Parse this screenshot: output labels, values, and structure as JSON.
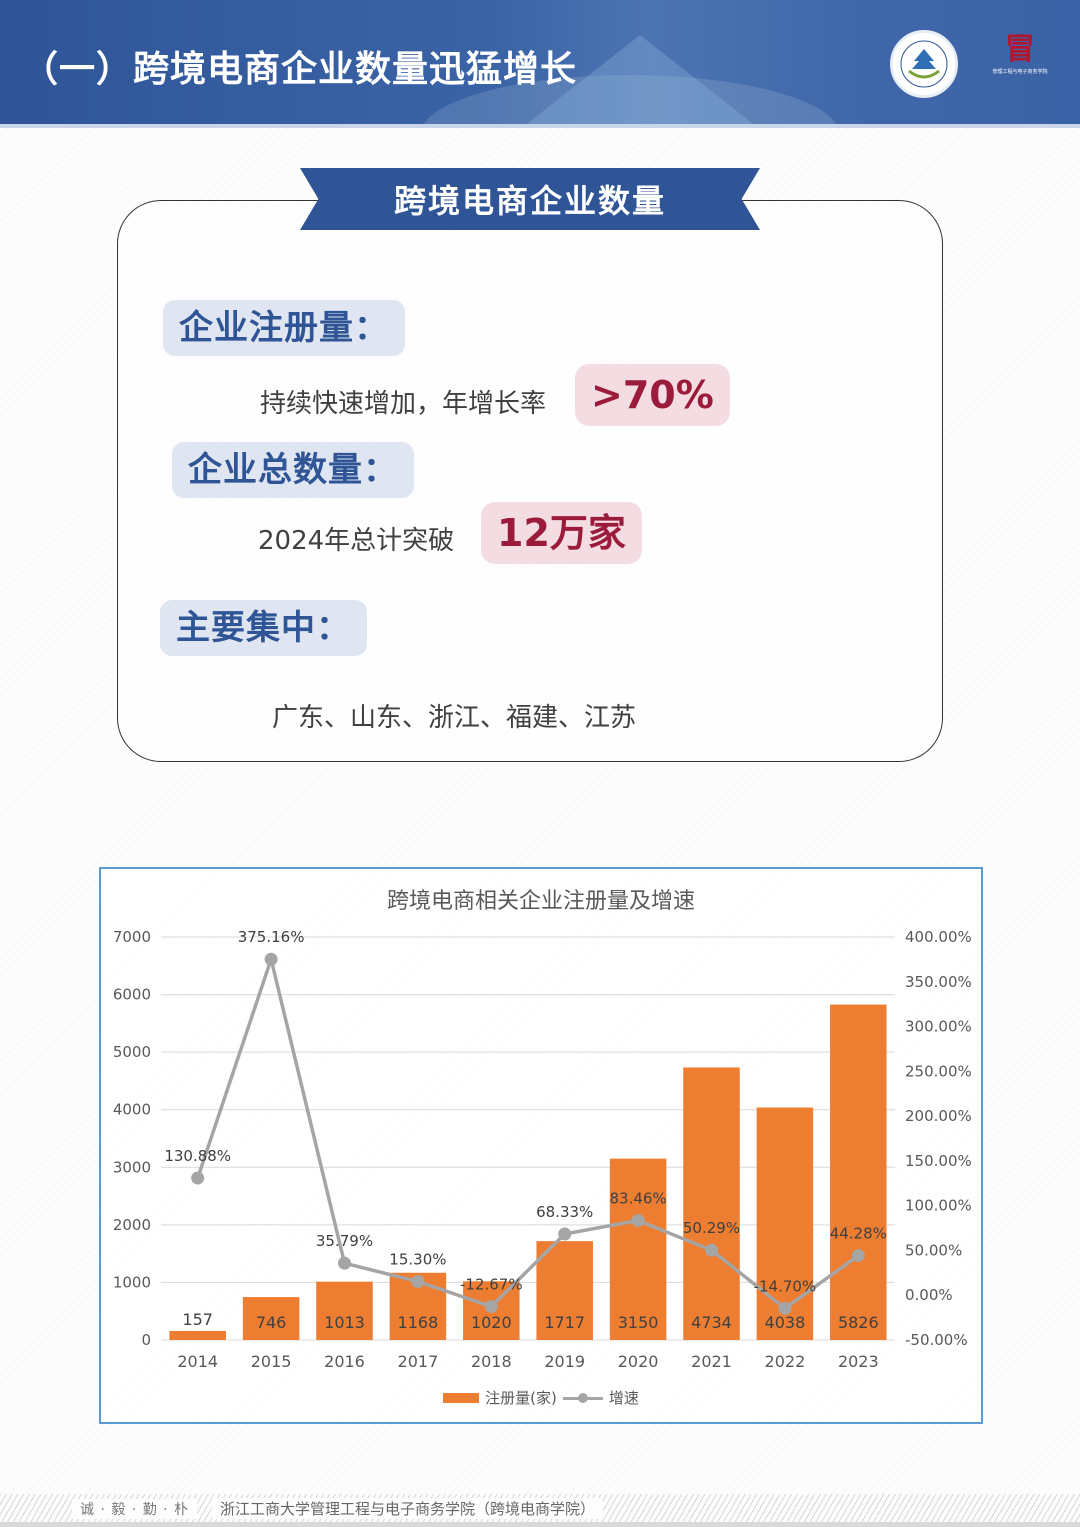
{
  "header": {
    "title": "（一）跨境电商企业数量迅猛增长",
    "university_logo": "zhejiang-gongshang-university-emblem",
    "school_logo_caption": "管理工程与电子商务学院"
  },
  "card": {
    "ribbon_title": "跨境电商企业数量",
    "sections": [
      {
        "label": "企业注册量：",
        "text": "持续快速增加，年增长率",
        "highlight": ">70%"
      },
      {
        "label": "企业总数量：",
        "text": "2024年总计突破",
        "highlight": "12万家"
      },
      {
        "label": "主要集中：",
        "text": "广东、山东、浙江、福建、江苏"
      }
    ]
  },
  "chart": {
    "title": "跨境电商相关企业注册量及增速",
    "legend": {
      "bar": "注册量(家)",
      "line": "增速"
    }
  },
  "chart_data": {
    "type": "bar+line",
    "title": "跨境电商相关企业注册量及增速",
    "categories": [
      "2014",
      "2015",
      "2016",
      "2017",
      "2018",
      "2019",
      "2020",
      "2021",
      "2022",
      "2023"
    ],
    "series": [
      {
        "name": "注册量(家)",
        "type": "bar",
        "axis": "left",
        "color": "#ed7d31",
        "values": [
          157,
          746,
          1013,
          1168,
          1020,
          1717,
          3150,
          4734,
          4038,
          5826
        ]
      },
      {
        "name": "增速",
        "type": "line",
        "axis": "right",
        "color": "#a5a5a5",
        "values": [
          130.88,
          375.16,
          35.79,
          15.3,
          -12.67,
          68.33,
          83.46,
          50.29,
          -14.7,
          44.28
        ],
        "labels": [
          "130.88%",
          "375.16%",
          "35.79%",
          "15.30%",
          "-12.67%",
          "68.33%",
          "83.46%",
          "50.29%",
          "-14.70%",
          "44.28%"
        ]
      }
    ],
    "left_axis": {
      "ylim": [
        0,
        7000
      ],
      "ticks": [
        "0",
        "1000",
        "2000",
        "3000",
        "4000",
        "5000",
        "6000",
        "7000"
      ]
    },
    "right_axis": {
      "ylim": [
        -50,
        400
      ],
      "ticks": [
        "-50.00%",
        "0.00%",
        "50.00%",
        "100.00%",
        "150.00%",
        "200.00%",
        "250.00%",
        "300.00%",
        "350.00%",
        "400.00%"
      ]
    },
    "grid": true,
    "legend_position": "bottom"
  },
  "footer": {
    "motto": "诚 · 毅 · 勤 · 朴",
    "school": "浙江工商大学管理工程与电子商务学院（跨境电商学院）"
  }
}
